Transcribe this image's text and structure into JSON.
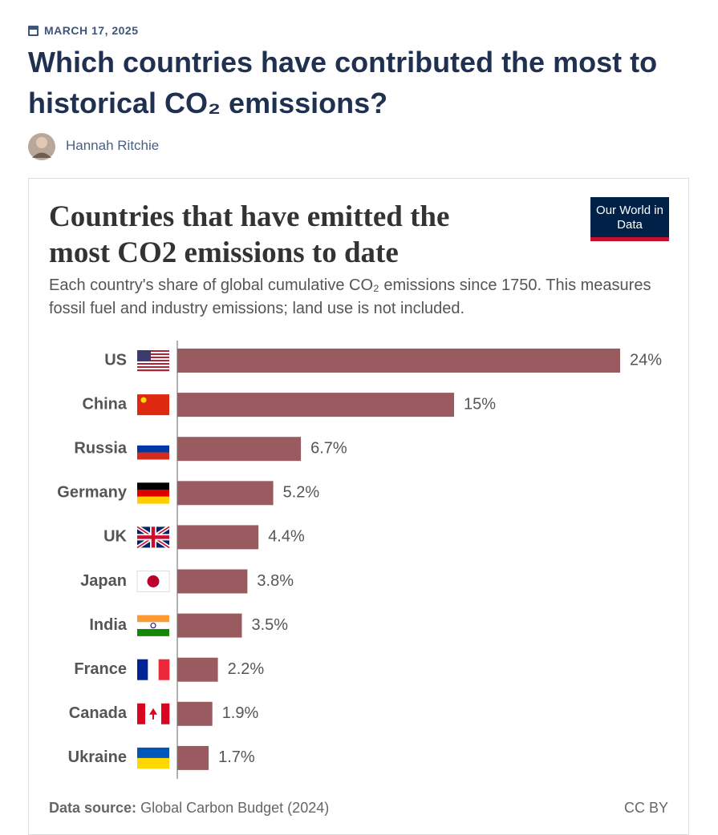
{
  "header": {
    "date": "MARCH 17, 2025",
    "title": "Which countries have contributed the most to historical CO₂ emissions?",
    "author": "Hannah Ritchie"
  },
  "chart_data": {
    "type": "bar",
    "orientation": "horizontal",
    "title": "Countries that have emitted the most CO2 emissions to date",
    "subtitle": "Each country's share of global cumulative CO₂ emissions since 1750. This measures fossil fuel and industry emissions; land use is not included.",
    "logo": "Our World in Data",
    "categories": [
      "US",
      "China",
      "Russia",
      "Germany",
      "UK",
      "Japan",
      "India",
      "France",
      "Canada",
      "Ukraine"
    ],
    "values": [
      24,
      15,
      6.7,
      5.2,
      4.4,
      3.8,
      3.5,
      2.2,
      1.9,
      1.7
    ],
    "value_labels": [
      "24%",
      "15%",
      "6.7%",
      "5.2%",
      "4.4%",
      "3.8%",
      "3.5%",
      "2.2%",
      "1.9%",
      "1.7%"
    ],
    "color": "#9a5b60",
    "source_label": "Data source:",
    "source": "Global Carbon Budget (2024)",
    "license": "CC BY"
  }
}
